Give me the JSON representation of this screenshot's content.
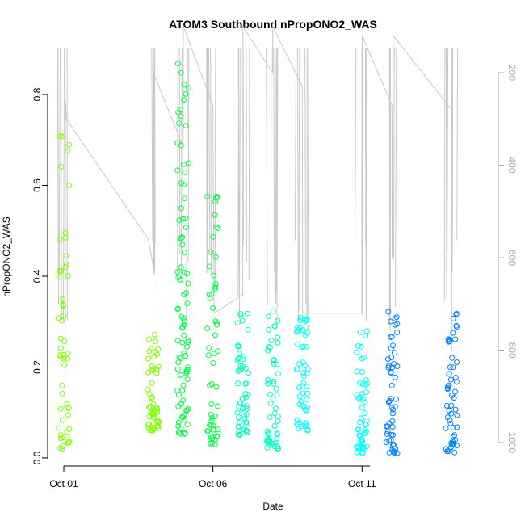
{
  "chart_data": {
    "type": "scatter",
    "title": "ATOM3 Southbound nPropONO2_WAS",
    "xlabel": "Date",
    "ylabel": "nPropONO2_WAS",
    "x_unit": "date",
    "x_ticks": [
      {
        "label": "Oct 01",
        "value": "2016-10-01"
      },
      {
        "label": "Oct 06",
        "value": "2016-10-06"
      },
      {
        "label": "Oct 11",
        "value": "2016-10-11"
      }
    ],
    "y_ticks": [
      "0.0",
      "0.2",
      "0.4",
      "0.6",
      "0.8"
    ],
    "y_right_ticks": [
      "200",
      "400",
      "600",
      "800",
      "1000"
    ],
    "ylim": [
      -0.01,
      0.9
    ],
    "xlim": [
      "2016-10-01 00:00",
      "2016-10-15 00:00"
    ],
    "y2_reversed": true,
    "y2lim": [
      1030,
      100
    ],
    "grid": false,
    "legend": "none",
    "colors": {
      "marker_gradient": [
        "#7fff00",
        "#00ff40",
        "#00ffc0",
        "#00ffff",
        "#0080ff"
      ],
      "line": "#c8c8c8",
      "right_axis": "#aaaaaa"
    },
    "series": [
      {
        "type": "scatter",
        "values_by_day": [
          {
            "day": "2016-10-01",
            "ymin": 0.02,
            "ymax": 0.76
          },
          {
            "day": "2016-10-04",
            "ymin": 0.06,
            "ymax": 0.28
          },
          {
            "day": "2016-10-05",
            "ymin": 0.05,
            "ymax": 0.87
          },
          {
            "day": "2016-10-06",
            "ymin": 0.03,
            "ymax": 0.58
          },
          {
            "day": "2016-10-07",
            "ymin": 0.05,
            "ymax": 0.33
          },
          {
            "day": "2016-10-08",
            "ymin": 0.02,
            "ymax": 0.34
          },
          {
            "day": "2016-10-09",
            "ymin": 0.06,
            "ymax": 0.31
          },
          {
            "day": "2016-10-11",
            "ymin": 0.01,
            "ymax": 0.28
          },
          {
            "day": "2016-10-12",
            "ymin": 0.01,
            "ymax": 0.33
          },
          {
            "day": "2016-10-14",
            "ymin": 0.01,
            "ymax": 0.33
          }
        ]
      },
      {
        "type": "line",
        "axis": "right",
        "points": [
          [
            "2016-10-01 01:00",
            1000
          ],
          [
            "2016-10-01 01:20",
            260
          ],
          [
            "2016-10-01 02:00",
            300
          ],
          [
            "2016-10-03 20:00",
            560
          ],
          [
            "2016-10-04 00:00",
            620
          ],
          [
            "2016-10-04 00:10",
            200
          ],
          [
            "2016-10-05 00:00",
            360
          ],
          [
            "2016-10-05 00:10",
            100
          ],
          [
            "2016-10-06 00:00",
            270
          ],
          [
            "2016-10-06 01:00",
            720
          ],
          [
            "2016-10-07 00:00",
            680
          ],
          [
            "2016-10-07 00:10",
            100
          ],
          [
            "2016-10-08 00:00",
            200
          ],
          [
            "2016-10-08 00:10",
            100
          ],
          [
            "2016-10-09 00:00",
            230
          ],
          [
            "2016-10-09 00:10",
            720
          ],
          [
            "2016-10-11 00:00",
            720
          ],
          [
            "2016-10-11 00:10",
            120
          ],
          [
            "2016-10-12 00:00",
            270
          ],
          [
            "2016-10-12 00:10",
            600
          ],
          [
            "2016-10-12 01:00",
            120
          ],
          [
            "2016-10-14 00:00",
            280
          ],
          [
            "2016-10-14 00:10",
            800
          ]
        ]
      }
    ]
  }
}
